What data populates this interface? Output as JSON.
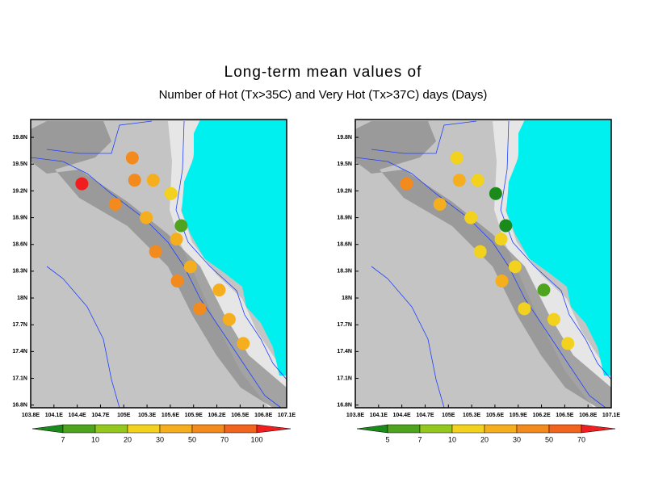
{
  "title": "Long-term mean values of",
  "subtitle": "Number of Hot (Tx>35C) and Very Hot (Tx>37C) days (Days)",
  "maps": [
    {
      "xlim": [
        103.8,
        107.1
      ],
      "ylim": [
        16.77,
        20.0
      ],
      "xticks": [
        {
          "value": 103.8,
          "label": "103.8E"
        },
        {
          "value": 104.1,
          "label": "104.1E"
        },
        {
          "value": 104.4,
          "label": "104.4E"
        },
        {
          "value": 104.7,
          "label": "104.7E"
        },
        {
          "value": 105,
          "label": "105E"
        },
        {
          "value": 105.3,
          "label": "105.3E"
        },
        {
          "value": 105.6,
          "label": "105.6E"
        },
        {
          "value": 105.9,
          "label": "105.9E"
        },
        {
          "value": 106.2,
          "label": "106.2E"
        },
        {
          "value": 106.5,
          "label": "106.5E"
        },
        {
          "value": 106.8,
          "label": "106.8E"
        },
        {
          "value": 107.1,
          "label": "107.1E"
        }
      ],
      "yticks": [
        {
          "value": 19.8,
          "label": "19.8N"
        },
        {
          "value": 19.5,
          "label": "19.5N"
        },
        {
          "value": 19.2,
          "label": "19.2N"
        },
        {
          "value": 18.9,
          "label": "18.9N"
        },
        {
          "value": 18.6,
          "label": "18.6N"
        },
        {
          "value": 18.3,
          "label": "18.3N"
        },
        {
          "value": 18,
          "label": "18N"
        },
        {
          "value": 17.7,
          "label": "17.7N"
        },
        {
          "value": 17.4,
          "label": "17.4N"
        },
        {
          "value": 17.1,
          "label": "17.1N"
        },
        {
          "value": 16.8,
          "label": "16.8N"
        }
      ],
      "colorbar": {
        "levels": [
          7,
          10,
          20,
          30,
          50,
          70,
          100
        ],
        "colors": [
          "#1a8a1a",
          "#4ea41e",
          "#94c81e",
          "#f2d21e",
          "#f5ae1e",
          "#f28a1e",
          "#f0641e",
          "#f01e1e"
        ]
      },
      "stations": [
        {
          "lon": 105.11,
          "lat": 19.57,
          "color": "#f28a1e"
        },
        {
          "lon": 104.46,
          "lat": 19.28,
          "color": "#f01e1e"
        },
        {
          "lon": 105.14,
          "lat": 19.32,
          "color": "#f28a1e"
        },
        {
          "lon": 105.38,
          "lat": 19.32,
          "color": "#f5ae1e"
        },
        {
          "lon": 105.61,
          "lat": 19.17,
          "color": "#f2d21e"
        },
        {
          "lon": 104.89,
          "lat": 19.05,
          "color": "#f28a1e"
        },
        {
          "lon": 105.29,
          "lat": 18.9,
          "color": "#f5ae1e"
        },
        {
          "lon": 105.74,
          "lat": 18.81,
          "color": "#4ea41e"
        },
        {
          "lon": 105.68,
          "lat": 18.66,
          "color": "#f5ae1e"
        },
        {
          "lon": 105.41,
          "lat": 18.52,
          "color": "#f28a1e"
        },
        {
          "lon": 105.86,
          "lat": 18.35,
          "color": "#f5ae1e"
        },
        {
          "lon": 105.69,
          "lat": 18.19,
          "color": "#f28a1e"
        },
        {
          "lon": 106.23,
          "lat": 18.09,
          "color": "#f5ae1e"
        },
        {
          "lon": 105.98,
          "lat": 17.88,
          "color": "#f28a1e"
        },
        {
          "lon": 106.36,
          "lat": 17.76,
          "color": "#f5ae1e"
        },
        {
          "lon": 106.54,
          "lat": 17.49,
          "color": "#f5ae1e"
        }
      ]
    },
    {
      "xlim": [
        103.8,
        107.1
      ],
      "ylim": [
        16.77,
        20.0
      ],
      "xticks": [
        {
          "value": 103.8,
          "label": "103.8E"
        },
        {
          "value": 104.1,
          "label": "104.1E"
        },
        {
          "value": 104.4,
          "label": "104.4E"
        },
        {
          "value": 104.7,
          "label": "104.7E"
        },
        {
          "value": 105,
          "label": "105E"
        },
        {
          "value": 105.3,
          "label": "105.3E"
        },
        {
          "value": 105.6,
          "label": "105.6E"
        },
        {
          "value": 105.9,
          "label": "105.9E"
        },
        {
          "value": 106.2,
          "label": "106.2E"
        },
        {
          "value": 106.5,
          "label": "106.5E"
        },
        {
          "value": 106.8,
          "label": "106.8E"
        },
        {
          "value": 107.1,
          "label": "107.1E"
        }
      ],
      "yticks": [
        {
          "value": 19.8,
          "label": "19.8N"
        },
        {
          "value": 19.5,
          "label": "19.5N"
        },
        {
          "value": 19.2,
          "label": "19.2N"
        },
        {
          "value": 18.9,
          "label": "18.9N"
        },
        {
          "value": 18.6,
          "label": "18.6N"
        },
        {
          "value": 18.3,
          "label": "18.3N"
        },
        {
          "value": 18,
          "label": "18N"
        },
        {
          "value": 17.7,
          "label": "17.7N"
        },
        {
          "value": 17.4,
          "label": "17.4N"
        },
        {
          "value": 17.1,
          "label": "17.1N"
        },
        {
          "value": 16.8,
          "label": "16.8N"
        }
      ],
      "colorbar": {
        "levels": [
          5,
          7,
          10,
          20,
          30,
          50,
          70
        ],
        "colors": [
          "#1a8a1a",
          "#4ea41e",
          "#94c81e",
          "#f2d21e",
          "#f5ae1e",
          "#f28a1e",
          "#f0641e",
          "#f01e1e"
        ]
      },
      "stations": [
        {
          "lon": 105.11,
          "lat": 19.57,
          "color": "#f2d21e"
        },
        {
          "lon": 104.46,
          "lat": 19.28,
          "color": "#f28a1e"
        },
        {
          "lon": 105.14,
          "lat": 19.32,
          "color": "#f5ae1e"
        },
        {
          "lon": 105.38,
          "lat": 19.32,
          "color": "#f2d21e"
        },
        {
          "lon": 105.61,
          "lat": 19.17,
          "color": "#1a8a1a"
        },
        {
          "lon": 104.89,
          "lat": 19.05,
          "color": "#f5ae1e"
        },
        {
          "lon": 105.29,
          "lat": 18.9,
          "color": "#f2d21e"
        },
        {
          "lon": 105.74,
          "lat": 18.81,
          "color": "#1a8a1a"
        },
        {
          "lon": 105.68,
          "lat": 18.66,
          "color": "#f2d21e"
        },
        {
          "lon": 105.41,
          "lat": 18.52,
          "color": "#f2d21e"
        },
        {
          "lon": 105.86,
          "lat": 18.35,
          "color": "#f2d21e"
        },
        {
          "lon": 105.69,
          "lat": 18.19,
          "color": "#f5ae1e"
        },
        {
          "lon": 106.23,
          "lat": 18.09,
          "color": "#4ea41e"
        },
        {
          "lon": 105.98,
          "lat": 17.88,
          "color": "#f2d21e"
        },
        {
          "lon": 106.36,
          "lat": 17.76,
          "color": "#f2d21e"
        },
        {
          "lon": 106.54,
          "lat": 17.49,
          "color": "#f2d21e"
        }
      ]
    }
  ]
}
